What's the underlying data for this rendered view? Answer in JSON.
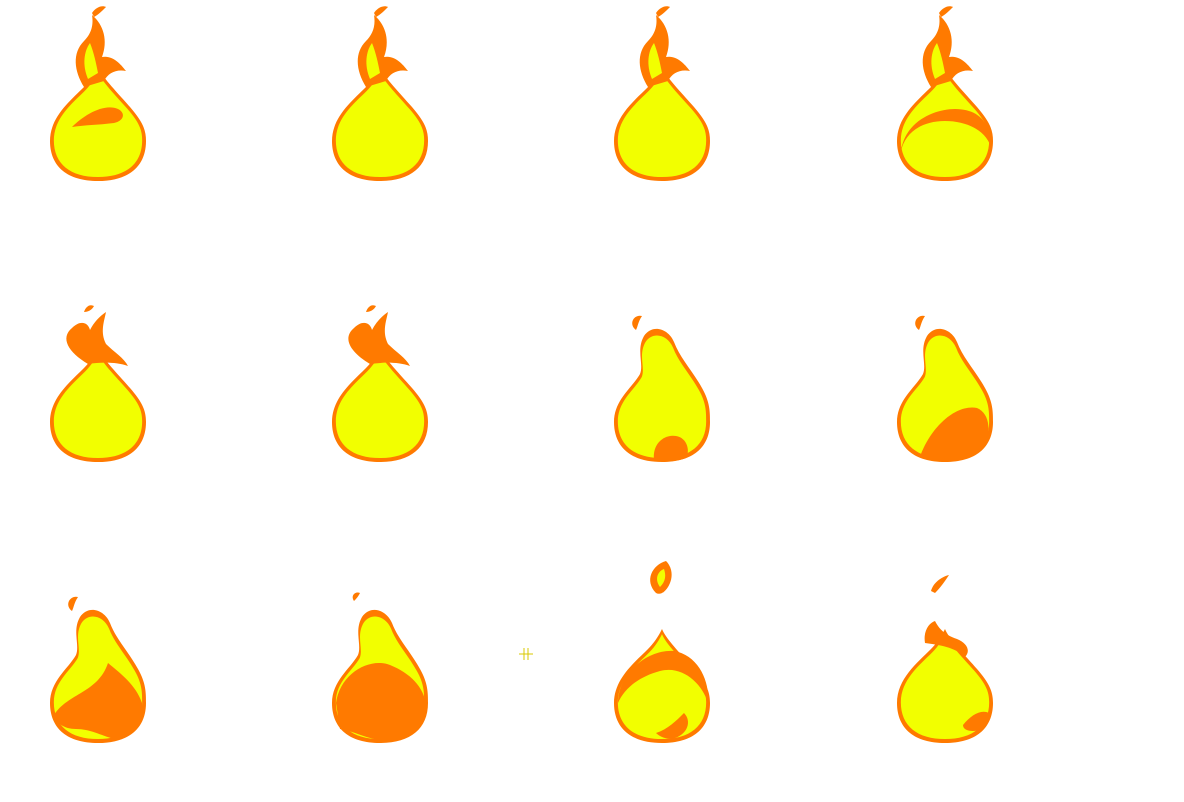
{
  "sheet": {
    "columns": 4,
    "rows": 3,
    "colors": {
      "outline": "#ff7a00",
      "fill": "#f2ff00",
      "background": "#ffffff",
      "marker": "#d9c800"
    },
    "frames": [
      {
        "name": "frame-1",
        "variant": "tall-tip-inner-swirl"
      },
      {
        "name": "frame-2",
        "variant": "tall-tip-plain"
      },
      {
        "name": "frame-3",
        "variant": "tall-tip-plain"
      },
      {
        "name": "frame-4",
        "variant": "tall-tip-bottom-band"
      },
      {
        "name": "frame-5",
        "variant": "broken-tip-plain"
      },
      {
        "name": "frame-6",
        "variant": "broken-tip-plain"
      },
      {
        "name": "frame-7",
        "variant": "neck-bottom-spot"
      },
      {
        "name": "frame-8",
        "variant": "neck-bottom-blob"
      },
      {
        "name": "frame-9",
        "variant": "neck-large-blob"
      },
      {
        "name": "frame-10",
        "variant": "detached-tip-orange-body"
      },
      {
        "name": "frame-11",
        "variant": "detached-tip-plain"
      },
      {
        "name": "frame-12",
        "variant": "detached-tip-small"
      }
    ],
    "marker_icon": "crosshair-icon"
  }
}
